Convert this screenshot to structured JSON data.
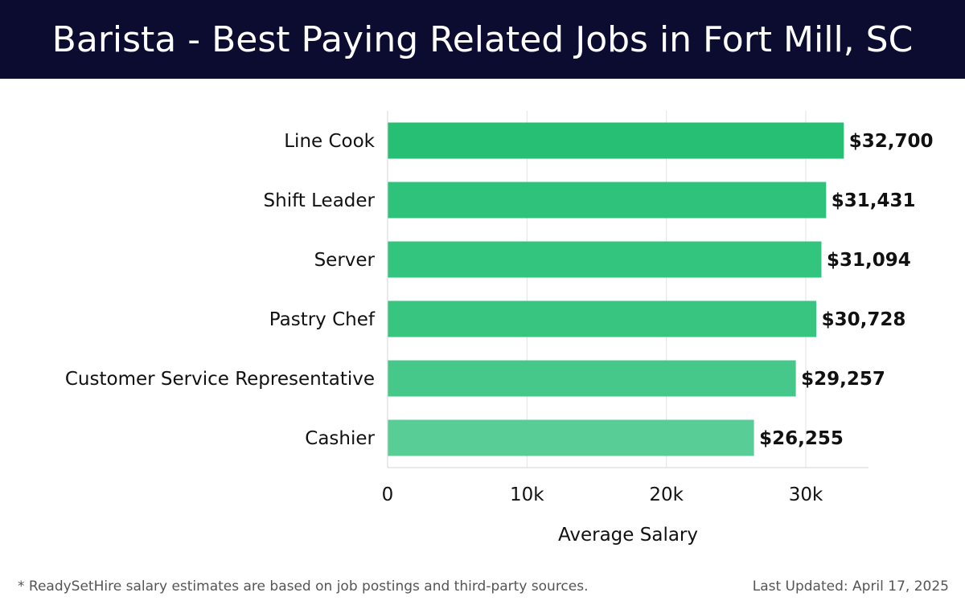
{
  "header": {
    "title": "Barista - Best Paying Related Jobs in Fort Mill, SC"
  },
  "chart_data": {
    "type": "bar",
    "orientation": "horizontal",
    "categories": [
      "Line Cook",
      "Shift Leader",
      "Server",
      "Pastry Chef",
      "Customer Service Representative",
      "Cashier"
    ],
    "values": [
      32700,
      31431,
      31094,
      30728,
      29257,
      26255
    ],
    "value_labels": [
      "$32,700",
      "$31,431",
      "$31,094",
      "$30,728",
      "$29,257",
      "$26,255"
    ],
    "xlabel": "Average Salary",
    "xlim": [
      0,
      34500
    ],
    "xticks": [
      0,
      10000,
      20000,
      30000
    ],
    "xtick_labels": [
      "0",
      "10k",
      "20k",
      "30k"
    ],
    "grid": true,
    "bar_colors": [
      "#27bf73",
      "#2ec27a",
      "#33c47e",
      "#38c580",
      "#45c88a",
      "#58cd95"
    ]
  },
  "footer": {
    "note": "* ReadySetHire salary estimates are based on job postings and third-party sources.",
    "updated": "Last Updated: April 17, 2025"
  }
}
